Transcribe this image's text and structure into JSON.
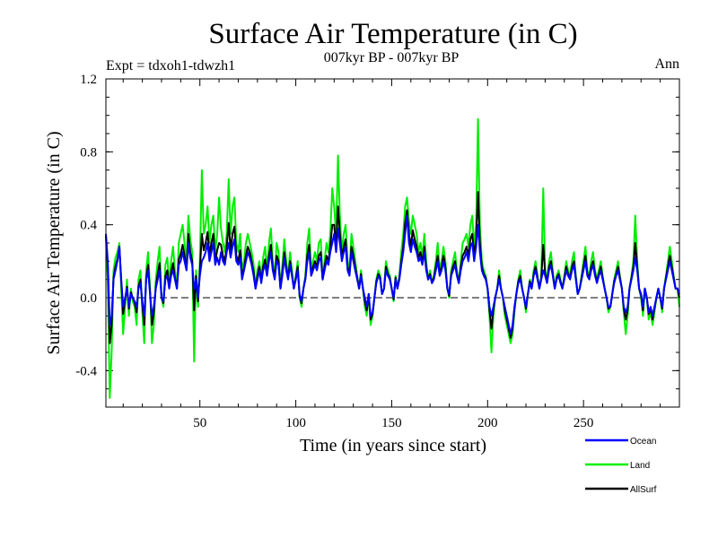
{
  "chart_data": {
    "type": "line",
    "title": "Surface Air Temperature (in C)",
    "subtitle": "007kyr BP - 007kyr BP",
    "experiment_label": "Expt = tdxoh1-tdwzh1",
    "season_label": "Ann",
    "xlabel": "Time (in years since start)",
    "ylabel": "Surface Air Temperature (in C)",
    "xlim": [
      1,
      300
    ],
    "ylim": [
      -0.6,
      1.2
    ],
    "x_ticks": [
      50,
      100,
      150,
      200,
      250
    ],
    "x_tick_labels": [
      "50",
      "100",
      "150",
      "200",
      "250"
    ],
    "y_ticks": [
      -0.4,
      0.0,
      0.4,
      0.8,
      1.2
    ],
    "y_tick_labels": [
      "-0.4",
      "0.0",
      "0.4",
      "0.8",
      "1.2"
    ],
    "zero_line": "dashed",
    "legend_position": "bottom-right",
    "series": [
      {
        "name": "Ocean",
        "color": "#0000ff",
        "values": [
          0.35,
          0.2,
          -0.15,
          -0.1,
          0.1,
          0.15,
          0.2,
          0.28,
          0.1,
          -0.05,
          0.0,
          0.05,
          -0.05,
          0.02,
          0.0,
          -0.02,
          -0.05,
          0.05,
          0.08,
          -0.02,
          -0.1,
          0.1,
          0.15,
          0.02,
          -0.1,
          -0.05,
          0.05,
          0.1,
          0.15,
          0.0,
          -0.02,
          0.1,
          0.12,
          0.05,
          0.12,
          0.15,
          0.1,
          0.05,
          0.18,
          0.2,
          0.25,
          0.2,
          0.15,
          0.3,
          0.22,
          0.18,
          0.05,
          0.1,
          0.0,
          0.12,
          0.2,
          0.22,
          0.25,
          0.3,
          0.2,
          0.25,
          0.3,
          0.18,
          0.22,
          0.18,
          0.25,
          0.2,
          0.18,
          0.25,
          0.3,
          0.22,
          0.28,
          0.32,
          0.2,
          0.18,
          0.22,
          0.1,
          0.15,
          0.2,
          0.25,
          0.22,
          0.18,
          0.12,
          0.05,
          0.1,
          0.15,
          0.08,
          0.15,
          0.18,
          0.12,
          0.2,
          0.25,
          0.15,
          0.1,
          0.2,
          0.18,
          0.05,
          0.12,
          0.22,
          0.15,
          0.1,
          0.18,
          0.12,
          0.05,
          0.1,
          0.15,
          0.02,
          -0.02,
          0.05,
          0.1,
          0.2,
          0.25,
          0.12,
          0.15,
          0.18,
          0.15,
          0.2,
          0.22,
          0.1,
          0.15,
          0.2,
          0.18,
          0.25,
          0.3,
          0.35,
          0.25,
          0.38,
          0.3,
          0.2,
          0.25,
          0.28,
          0.15,
          0.12,
          0.25,
          0.2,
          0.15,
          0.1,
          0.05,
          0.12,
          0.05,
          0.0,
          -0.05,
          0.02,
          -0.1,
          -0.08,
          0.0,
          0.08,
          0.12,
          0.1,
          0.02,
          0.05,
          0.15,
          0.12,
          0.1,
          0.05,
          0.0,
          0.1,
          0.05,
          0.1,
          0.18,
          0.25,
          0.35,
          0.45,
          0.3,
          0.25,
          0.32,
          0.28,
          0.25,
          0.2,
          0.22,
          0.18,
          0.25,
          0.15,
          0.1,
          0.12,
          0.08,
          0.1,
          0.15,
          0.2,
          0.12,
          0.15,
          0.2,
          0.15,
          0.05,
          0.02,
          0.12,
          0.15,
          0.18,
          0.12,
          0.08,
          0.15,
          0.2,
          0.22,
          0.25,
          0.2,
          0.28,
          0.3,
          0.2,
          0.28,
          0.4,
          0.25,
          0.15,
          0.12,
          0.1,
          0.05,
          -0.05,
          -0.1,
          -0.05,
          0.0,
          0.05,
          0.1,
          0.05,
          0.0,
          -0.05,
          -0.1,
          -0.15,
          -0.2,
          -0.15,
          -0.05,
          0.02,
          0.08,
          0.1,
          0.05,
          0.0,
          -0.05,
          0.02,
          0.08,
          0.05,
          0.12,
          0.15,
          0.1,
          0.05,
          0.1,
          0.15,
          0.12,
          0.08,
          0.15,
          0.18,
          0.12,
          0.05,
          0.1,
          0.12,
          0.08,
          0.05,
          0.1,
          0.15,
          0.12,
          0.1,
          0.15,
          0.18,
          0.1,
          0.02,
          0.05,
          0.1,
          0.15,
          0.2,
          0.12,
          0.1,
          0.15,
          0.18,
          0.12,
          0.08,
          0.12,
          0.15,
          0.1,
          0.05,
          0.0,
          -0.05,
          -0.05,
          0.02,
          0.08,
          0.12,
          0.15,
          0.1,
          0.05,
          -0.05,
          -0.08,
          -0.05,
          0.05,
          0.1,
          0.15,
          0.22,
          0.15,
          0.05,
          0.02,
          -0.05,
          0.05,
          0.0,
          -0.08,
          -0.05,
          -0.1,
          -0.05,
          0.0,
          0.05,
          0.0,
          -0.05,
          0.05,
          0.1,
          0.15,
          0.2,
          0.15,
          0.1,
          0.05,
          0.05,
          0.02
        ]
      },
      {
        "name": "Land",
        "color": "#00ee00",
        "values": [
          0.32,
          0.1,
          -0.55,
          -0.3,
          0.15,
          0.22,
          0.25,
          0.3,
          0.05,
          -0.2,
          -0.05,
          0.1,
          -0.1,
          0.05,
          -0.02,
          -0.05,
          -0.15,
          0.1,
          0.15,
          -0.08,
          -0.25,
          0.15,
          0.25,
          0.05,
          -0.25,
          -0.15,
          0.1,
          0.2,
          0.28,
          0.0,
          -0.05,
          0.18,
          0.22,
          0.08,
          0.2,
          0.28,
          0.15,
          0.05,
          0.3,
          0.35,
          0.4,
          0.3,
          0.2,
          0.45,
          0.32,
          0.25,
          -0.35,
          0.15,
          -0.05,
          0.2,
          0.7,
          0.35,
          0.4,
          0.5,
          0.3,
          0.4,
          0.45,
          0.25,
          0.35,
          0.55,
          0.38,
          0.3,
          0.25,
          0.35,
          0.65,
          0.35,
          0.5,
          0.55,
          0.3,
          0.25,
          0.35,
          0.15,
          0.2,
          0.3,
          0.35,
          0.3,
          0.25,
          0.18,
          0.05,
          0.15,
          0.2,
          0.1,
          0.22,
          0.28,
          0.15,
          0.3,
          0.38,
          0.2,
          0.12,
          0.3,
          0.25,
          0.05,
          0.18,
          0.32,
          0.2,
          0.12,
          0.25,
          0.15,
          0.05,
          0.12,
          0.2,
          0.0,
          -0.05,
          0.05,
          0.12,
          0.3,
          0.38,
          0.15,
          0.2,
          0.25,
          0.2,
          0.3,
          0.32,
          0.1,
          0.2,
          0.3,
          0.25,
          0.35,
          0.6,
          0.5,
          0.35,
          0.78,
          0.45,
          0.25,
          0.35,
          0.4,
          0.2,
          0.15,
          0.35,
          0.28,
          0.2,
          0.12,
          0.05,
          0.15,
          0.05,
          -0.05,
          -0.1,
          0.02,
          -0.15,
          -0.1,
          0.0,
          0.1,
          0.15,
          0.12,
          0.02,
          0.05,
          0.2,
          0.15,
          0.12,
          0.05,
          -0.02,
          0.12,
          0.05,
          0.12,
          0.25,
          0.35,
          0.5,
          0.55,
          0.42,
          0.35,
          0.45,
          0.4,
          0.35,
          0.25,
          0.3,
          0.22,
          0.35,
          0.2,
          0.1,
          0.15,
          0.08,
          0.12,
          0.2,
          0.3,
          0.15,
          0.2,
          0.28,
          0.2,
          0.05,
          0.0,
          0.15,
          0.2,
          0.25,
          0.15,
          0.08,
          0.2,
          0.3,
          0.32,
          0.35,
          0.28,
          0.4,
          0.45,
          0.28,
          0.4,
          0.98,
          0.4,
          0.2,
          0.15,
          0.12,
          0.05,
          -0.1,
          -0.3,
          -0.1,
          0.0,
          0.05,
          0.15,
          0.05,
          0.0,
          -0.1,
          -0.15,
          -0.2,
          -0.25,
          -0.2,
          -0.08,
          0.02,
          0.1,
          0.15,
          0.05,
          0.0,
          -0.08,
          0.02,
          0.1,
          0.05,
          0.15,
          0.2,
          0.12,
          0.05,
          0.12,
          0.6,
          0.15,
          0.1,
          0.2,
          0.25,
          0.15,
          0.05,
          0.12,
          0.15,
          0.1,
          0.05,
          0.12,
          0.2,
          0.15,
          0.12,
          0.2,
          0.25,
          0.12,
          0.02,
          0.05,
          0.12,
          0.2,
          0.28,
          0.15,
          0.12,
          0.2,
          0.25,
          0.15,
          0.1,
          0.15,
          0.2,
          0.12,
          0.05,
          0.0,
          -0.08,
          -0.05,
          0.02,
          0.1,
          0.15,
          0.2,
          0.12,
          0.05,
          -0.08,
          -0.2,
          -0.1,
          0.05,
          0.12,
          0.2,
          0.45,
          0.2,
          0.05,
          0.0,
          -0.1,
          0.05,
          0.0,
          -0.12,
          -0.08,
          -0.15,
          -0.08,
          0.0,
          0.05,
          0.0,
          -0.08,
          0.05,
          0.12,
          0.2,
          0.28,
          0.2,
          0.12,
          0.05,
          0.05,
          -0.05
        ]
      },
      {
        "name": "AllSurf",
        "color": "#000000",
        "values": [
          0.34,
          0.18,
          -0.25,
          -0.15,
          0.11,
          0.17,
          0.21,
          0.28,
          0.09,
          -0.09,
          -0.01,
          0.06,
          -0.06,
          0.03,
          0.0,
          -0.03,
          -0.08,
          0.06,
          0.1,
          -0.04,
          -0.15,
          0.11,
          0.18,
          0.03,
          -0.15,
          -0.08,
          0.06,
          0.13,
          0.19,
          0.0,
          -0.03,
          0.12,
          0.15,
          0.06,
          0.14,
          0.19,
          0.11,
          0.05,
          0.21,
          0.24,
          0.29,
          0.23,
          0.16,
          0.35,
          0.25,
          0.2,
          -0.07,
          0.12,
          -0.02,
          0.15,
          0.35,
          0.26,
          0.3,
          0.36,
          0.23,
          0.3,
          0.35,
          0.2,
          0.26,
          0.3,
          0.29,
          0.23,
          0.2,
          0.28,
          0.41,
          0.26,
          0.35,
          0.39,
          0.23,
          0.2,
          0.26,
          0.12,
          0.16,
          0.23,
          0.28,
          0.25,
          0.2,
          0.14,
          0.05,
          0.12,
          0.17,
          0.09,
          0.17,
          0.21,
          0.13,
          0.23,
          0.29,
          0.17,
          0.11,
          0.23,
          0.2,
          0.05,
          0.14,
          0.25,
          0.17,
          0.11,
          0.2,
          0.13,
          0.05,
          0.11,
          0.17,
          0.01,
          -0.03,
          0.05,
          0.11,
          0.23,
          0.29,
          0.13,
          0.17,
          0.2,
          0.17,
          0.23,
          0.25,
          0.1,
          0.17,
          0.23,
          0.2,
          0.28,
          0.4,
          0.4,
          0.28,
          0.5,
          0.35,
          0.22,
          0.28,
          0.32,
          0.17,
          0.13,
          0.28,
          0.23,
          0.17,
          0.11,
          0.05,
          0.13,
          0.05,
          -0.02,
          -0.07,
          0.02,
          -0.12,
          -0.09,
          0.0,
          0.09,
          0.13,
          0.11,
          0.02,
          0.05,
          0.17,
          0.13,
          0.11,
          0.05,
          -0.01,
          0.11,
          0.05,
          0.11,
          0.2,
          0.28,
          0.41,
          0.48,
          0.35,
          0.28,
          0.37,
          0.32,
          0.28,
          0.22,
          0.25,
          0.19,
          0.28,
          0.17,
          0.1,
          0.13,
          0.08,
          0.11,
          0.17,
          0.23,
          0.13,
          0.17,
          0.23,
          0.17,
          0.05,
          0.01,
          0.13,
          0.17,
          0.2,
          0.13,
          0.08,
          0.17,
          0.23,
          0.25,
          0.28,
          0.23,
          0.32,
          0.35,
          0.23,
          0.32,
          0.58,
          0.3,
          0.17,
          0.13,
          0.11,
          0.05,
          -0.07,
          -0.17,
          -0.07,
          0.0,
          0.05,
          0.12,
          0.05,
          0.0,
          -0.07,
          -0.12,
          -0.17,
          -0.22,
          -0.17,
          -0.06,
          0.02,
          0.09,
          0.12,
          0.05,
          0.0,
          -0.06,
          0.02,
          0.09,
          0.05,
          0.13,
          0.17,
          0.11,
          0.05,
          0.11,
          0.29,
          0.13,
          0.09,
          0.17,
          0.2,
          0.13,
          0.05,
          0.11,
          0.13,
          0.09,
          0.05,
          0.11,
          0.17,
          0.13,
          0.11,
          0.17,
          0.2,
          0.11,
          0.02,
          0.05,
          0.11,
          0.17,
          0.23,
          0.13,
          0.11,
          0.17,
          0.2,
          0.13,
          0.09,
          0.13,
          0.17,
          0.11,
          0.05,
          0.0,
          -0.06,
          -0.05,
          0.02,
          0.09,
          0.13,
          0.17,
          0.11,
          0.05,
          -0.06,
          -0.12,
          -0.07,
          0.05,
          0.11,
          0.17,
          0.3,
          0.17,
          0.05,
          0.01,
          -0.07,
          0.05,
          0.0,
          -0.09,
          -0.06,
          -0.12,
          -0.06,
          0.0,
          0.05,
          0.0,
          -0.06,
          0.05,
          0.11,
          0.17,
          0.23,
          0.17,
          0.11,
          0.05,
          0.05,
          0.0
        ]
      }
    ]
  }
}
